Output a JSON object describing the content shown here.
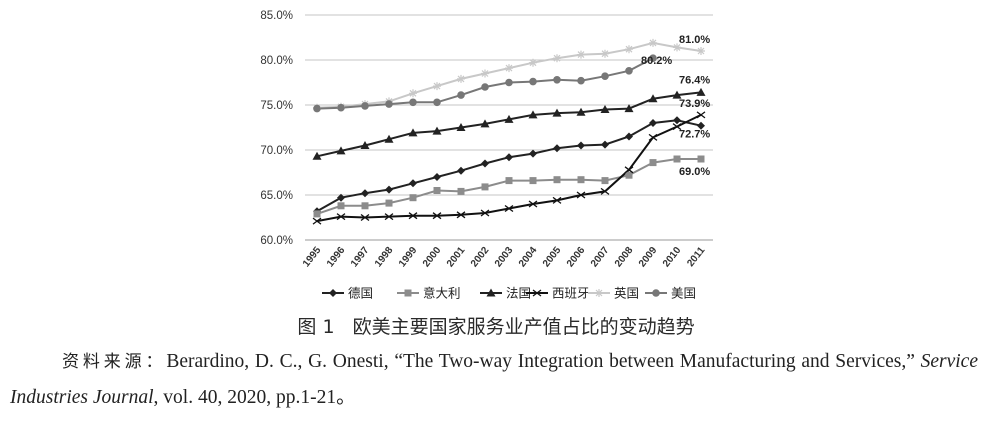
{
  "chart_data": {
    "type": "line",
    "title": "欧美主要国家服务业产值占比的变动趋势",
    "xlabel": "",
    "ylabel": "",
    "x": [
      "1995",
      "1996",
      "1997",
      "1998",
      "1999",
      "2000",
      "2001",
      "2002",
      "2003",
      "2004",
      "2005",
      "2006",
      "2007",
      "2008",
      "2009",
      "2010",
      "2011"
    ],
    "yticks": [
      "60.0%",
      "65.0%",
      "70.0%",
      "75.0%",
      "80.0%",
      "85.0%"
    ],
    "ylim": [
      60,
      85
    ],
    "grid": true,
    "legend_position": "bottom",
    "series": [
      {
        "name": "德国",
        "marker": "diamond",
        "color": "#222222",
        "values": [
          63.2,
          64.7,
          65.2,
          65.6,
          66.3,
          67.0,
          67.7,
          68.5,
          69.2,
          69.6,
          70.2,
          70.5,
          70.6,
          71.5,
          73.0,
          73.3,
          72.7
        ]
      },
      {
        "name": "意大利",
        "marker": "square",
        "color": "#8c8c8c",
        "values": [
          62.9,
          63.8,
          63.8,
          64.1,
          64.7,
          65.5,
          65.4,
          65.9,
          66.6,
          66.6,
          66.7,
          66.7,
          66.6,
          67.2,
          68.6,
          69.0,
          69.0
        ]
      },
      {
        "name": "法国",
        "marker": "triangle",
        "color": "#222222",
        "values": [
          69.3,
          69.9,
          70.5,
          71.2,
          71.9,
          72.1,
          72.5,
          72.9,
          73.4,
          73.9,
          74.1,
          74.2,
          74.5,
          74.6,
          75.7,
          76.1,
          76.4
        ]
      },
      {
        "name": "西班牙",
        "marker": "cross",
        "color": "#111111",
        "values": [
          62.1,
          62.6,
          62.5,
          62.6,
          62.7,
          62.7,
          62.8,
          63.0,
          63.5,
          64.0,
          64.4,
          65.0,
          65.4,
          67.8,
          71.4,
          72.6,
          73.9
        ]
      },
      {
        "name": "英国",
        "marker": "star",
        "color": "#c8c8c8",
        "values": [
          74.7,
          74.8,
          75.1,
          75.4,
          76.3,
          77.1,
          77.9,
          78.5,
          79.1,
          79.7,
          80.2,
          80.6,
          80.7,
          81.2,
          81.9,
          81.4,
          81.0
        ]
      },
      {
        "name": "美国",
        "marker": "circle",
        "color": "#777777",
        "values": [
          74.6,
          74.7,
          74.9,
          75.1,
          75.3,
          75.3,
          76.1,
          77.0,
          77.5,
          77.6,
          77.8,
          77.7,
          78.2,
          78.8,
          80.2,
          null,
          null
        ]
      }
    ],
    "annotations": [
      {
        "text": "81.0%",
        "series": "英国"
      },
      {
        "text": "80.2%",
        "series": "美国"
      },
      {
        "text": "76.4%",
        "series": "法国"
      },
      {
        "text": "73.9%",
        "series": "西班牙"
      },
      {
        "text": "72.7%",
        "series": "德国"
      },
      {
        "text": "69.0%",
        "series": "意大利"
      }
    ]
  },
  "figure_caption": {
    "number": "图 1",
    "title": "欧美主要国家服务业产值占比的变动趋势"
  },
  "source_note": {
    "lead": "资料来源：",
    "text_before": "Berardino, D. C., G. Onesti, “The Two-way Integration between Manufacturing and Services,” ",
    "journal": "Service Industries Journal",
    "text_after": ", vol. 40, 2020, pp.1-21。"
  }
}
